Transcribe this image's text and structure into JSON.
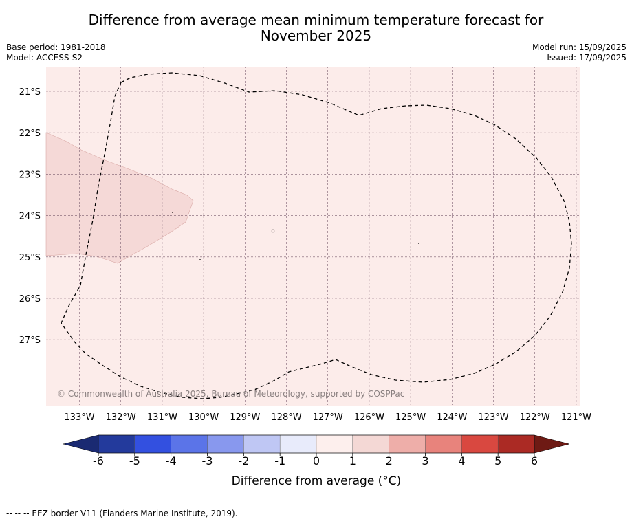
{
  "header": {
    "title_line1": "Difference from average mean minimum temperature forecast for",
    "title_line2": "November 2025",
    "base_period": "Base period: 1981-2018",
    "model": "Model: ACCESS-S2",
    "model_run": "Model run: 15/09/2025",
    "issued": "Issued: 17/09/2025"
  },
  "map": {
    "latitude_labels": [
      "21°S",
      "22°S",
      "23°S",
      "24°S",
      "25°S",
      "26°S",
      "27°S"
    ],
    "longitude_labels": [
      "133°W",
      "132°W",
      "131°W",
      "130°W",
      "129°W",
      "128°W",
      "127°W",
      "126°W",
      "125°W",
      "124°W",
      "123°W",
      "122°W",
      "121°W"
    ],
    "copyright": "© Commonwealth of Australia 2025, Bureau of Meteorology, supported by COSPPac",
    "colors": {
      "background_anomaly_0_1": "#fcecea",
      "anomaly_1_2": "#f5d9d7",
      "eez_border": "#000000",
      "gridline": "#7a5c6e"
    }
  },
  "colorbar": {
    "tick_labels": [
      "-6",
      "-5",
      "-4",
      "-3",
      "-2",
      "-1",
      "0",
      "1",
      "2",
      "3",
      "4",
      "5",
      "6"
    ],
    "label": "Difference from average (°C)",
    "colors": [
      "#233a9c",
      "#3350e0",
      "#5b74e8",
      "#8898ee",
      "#bfc7f4",
      "#e8ebfb",
      "#fdefed",
      "#f4d8d5",
      "#eeaea9",
      "#e8837c",
      "#d94840",
      "#ab2a24"
    ],
    "under_color": "#1a2a72",
    "over_color": "#6e1a14"
  },
  "footer": {
    "legend_text": "--  --  -- EEZ border V11 (Flanders Marine Institute, 2019)."
  }
}
